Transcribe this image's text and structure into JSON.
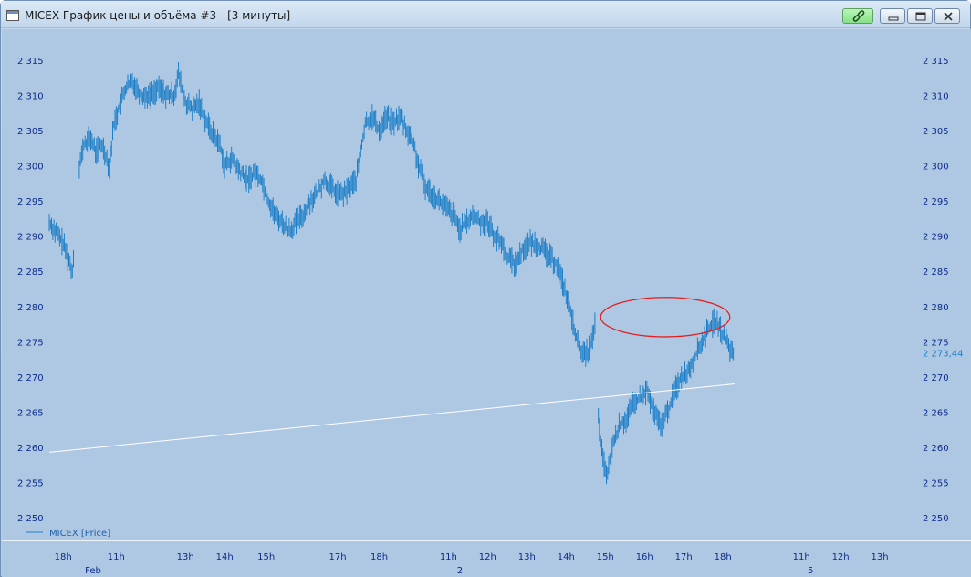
{
  "window": {
    "title": "MICEX График цены и объёма #3 - [3 минуты]"
  },
  "icons": {
    "app": "chart-window-icon",
    "link": "link-icon",
    "minimize": "minimize-icon",
    "maximize": "maximize-icon",
    "close": "close-icon"
  },
  "colors": {
    "background": "#aec8e3",
    "price_bars": "#1e7fc8",
    "trendline": "#ffffff",
    "annotation_ellipse": "#e02020",
    "axis_text": "#0b2a8a"
  },
  "legend": {
    "label": "MICEX [Price]"
  },
  "chart_data": {
    "type": "bar",
    "series_name": "MICEX [Price]",
    "y_ticks": [
      "2 315",
      "2 310",
      "2 305",
      "2 300",
      "2 295",
      "2 290",
      "2 285",
      "2 280",
      "2 275",
      "2 270",
      "2 265",
      "2 260",
      "2 255",
      "2 250"
    ],
    "ylim": [
      2250,
      2315
    ],
    "last_price_label": "2 273,44",
    "last_price": 2273.44,
    "x_time_labels": [
      "18h",
      "11h",
      "13h",
      "14h",
      "15h",
      "17h",
      "18h",
      "11h",
      "12h",
      "13h",
      "14h",
      "15h",
      "16h",
      "17h",
      "18h",
      "11h",
      "12h",
      "13h"
    ],
    "x_time_positions": [
      6,
      29,
      59,
      76,
      94,
      125,
      143,
      173,
      190,
      207,
      224,
      241,
      258,
      275,
      292,
      326,
      343,
      360
    ],
    "x_date_labels": [
      "Feb",
      "2",
      "5"
    ],
    "x_date_positions": [
      19,
      178,
      330
    ],
    "x_range": [
      0,
      375
    ],
    "series_anchor_points": [
      [
        0,
        2292
      ],
      [
        4,
        2290
      ],
      [
        6,
        2289
      ],
      [
        8,
        2287
      ],
      [
        10,
        2285
      ],
      [
        11,
        2290
      ],
      [
        13,
        2300
      ],
      [
        15,
        2303
      ],
      [
        18,
        2304
      ],
      [
        20,
        2302
      ],
      [
        23,
        2303
      ],
      [
        26,
        2300
      ],
      [
        28,
        2306
      ],
      [
        31,
        2309
      ],
      [
        33,
        2311
      ],
      [
        36,
        2312
      ],
      [
        40,
        2310
      ],
      [
        44,
        2310
      ],
      [
        47,
        2311
      ],
      [
        51,
        2310
      ],
      [
        54,
        2310
      ],
      [
        56,
        2313
      ],
      [
        59,
        2309
      ],
      [
        62,
        2308
      ],
      [
        65,
        2309
      ],
      [
        67,
        2307
      ],
      [
        70,
        2305
      ],
      [
        72,
        2304
      ],
      [
        74,
        2303
      ],
      [
        76,
        2300
      ],
      [
        79,
        2301
      ],
      [
        83,
        2299
      ],
      [
        86,
        2298
      ],
      [
        89,
        2299
      ],
      [
        92,
        2298
      ],
      [
        95,
        2295
      ],
      [
        98,
        2293
      ],
      [
        101,
        2292
      ],
      [
        103,
        2291
      ],
      [
        105,
        2291
      ],
      [
        107,
        2292
      ],
      [
        110,
        2293
      ],
      [
        113,
        2295
      ],
      [
        116,
        2296
      ],
      [
        119,
        2298
      ],
      [
        122,
        2297
      ],
      [
        125,
        2296
      ],
      [
        128,
        2296
      ],
      [
        130,
        2297
      ],
      [
        133,
        2298
      ],
      [
        135,
        2302
      ],
      [
        137,
        2306
      ],
      [
        140,
        2307
      ],
      [
        143,
        2305
      ],
      [
        146,
        2307
      ],
      [
        149,
        2306
      ],
      [
        152,
        2307
      ],
      [
        155,
        2305
      ],
      [
        158,
        2303
      ],
      [
        160,
        2300
      ],
      [
        163,
        2297
      ],
      [
        166,
        2296
      ],
      [
        169,
        2295
      ],
      [
        172,
        2294
      ],
      [
        175,
        2293
      ],
      [
        178,
        2291
      ],
      [
        181,
        2292
      ],
      [
        184,
        2293
      ],
      [
        187,
        2292
      ],
      [
        190,
        2292
      ],
      [
        193,
        2290
      ],
      [
        196,
        2289
      ],
      [
        199,
        2287
      ],
      [
        202,
        2286
      ],
      [
        205,
        2288
      ],
      [
        208,
        2289
      ],
      [
        211,
        2289
      ],
      [
        214,
        2288
      ],
      [
        217,
        2287
      ],
      [
        220,
        2286
      ],
      [
        223,
        2283
      ],
      [
        226,
        2279
      ],
      [
        229,
        2275
      ],
      [
        232,
        2273
      ],
      [
        234,
        2274
      ],
      [
        236,
        2276
      ],
      [
        237,
        2279
      ],
      [
        238,
        2264
      ],
      [
        240,
        2258
      ],
      [
        242,
        2256
      ],
      [
        244,
        2260
      ],
      [
        247,
        2263
      ],
      [
        250,
        2264
      ],
      [
        253,
        2266
      ],
      [
        256,
        2267
      ],
      [
        259,
        2268
      ],
      [
        262,
        2265
      ],
      [
        265,
        2263
      ],
      [
        268,
        2265
      ],
      [
        271,
        2268
      ],
      [
        274,
        2270
      ],
      [
        277,
        2271
      ],
      [
        280,
        2273
      ],
      [
        283,
        2275
      ],
      [
        286,
        2277
      ],
      [
        289,
        2278
      ],
      [
        292,
        2276
      ],
      [
        295,
        2274
      ],
      [
        297,
        2273
      ]
    ],
    "trendline": {
      "from": [
        0,
        2259.3
      ],
      "to": [
        297,
        2269
      ]
    },
    "annotation": {
      "shape": "ellipse",
      "center": [
        267,
        2278.5
      ],
      "rx_units": 28,
      "ry_units": 2.8
    },
    "grid": false,
    "legend_position": "bottom-left"
  }
}
